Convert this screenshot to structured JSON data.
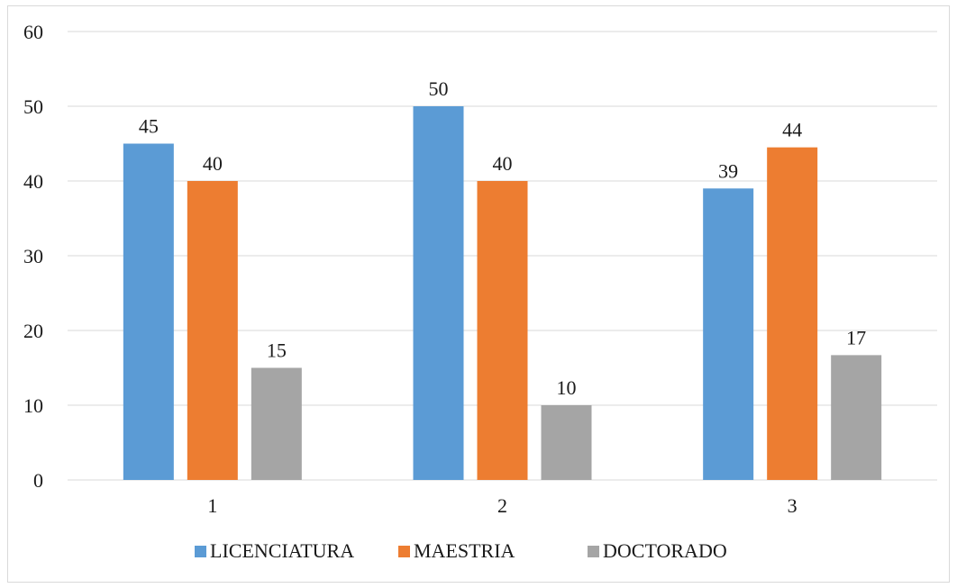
{
  "chart_data": {
    "type": "bar",
    "categories": [
      "1",
      "2",
      "3"
    ],
    "series": [
      {
        "name": "LICENCIATURA",
        "values": [
          45,
          50,
          39
        ],
        "labels": [
          "45",
          "50",
          "39"
        ],
        "color": "#5b9bd5"
      },
      {
        "name": "MAESTRIA",
        "values": [
          40,
          40,
          44.5
        ],
        "labels": [
          "40",
          "40",
          "44"
        ],
        "color": "#ed7d31"
      },
      {
        "name": "DOCTORADO",
        "values": [
          15,
          10,
          16.7
        ],
        "labels": [
          "15",
          "10",
          "17"
        ],
        "color": "#a5a5a5"
      }
    ],
    "yticks": [
      "0",
      "10",
      "20",
      "30",
      "40",
      "50",
      "60"
    ],
    "ylim": [
      0,
      60
    ],
    "grid": true,
    "legend_position": "bottom",
    "gridline_color": "#d9d9d9"
  }
}
